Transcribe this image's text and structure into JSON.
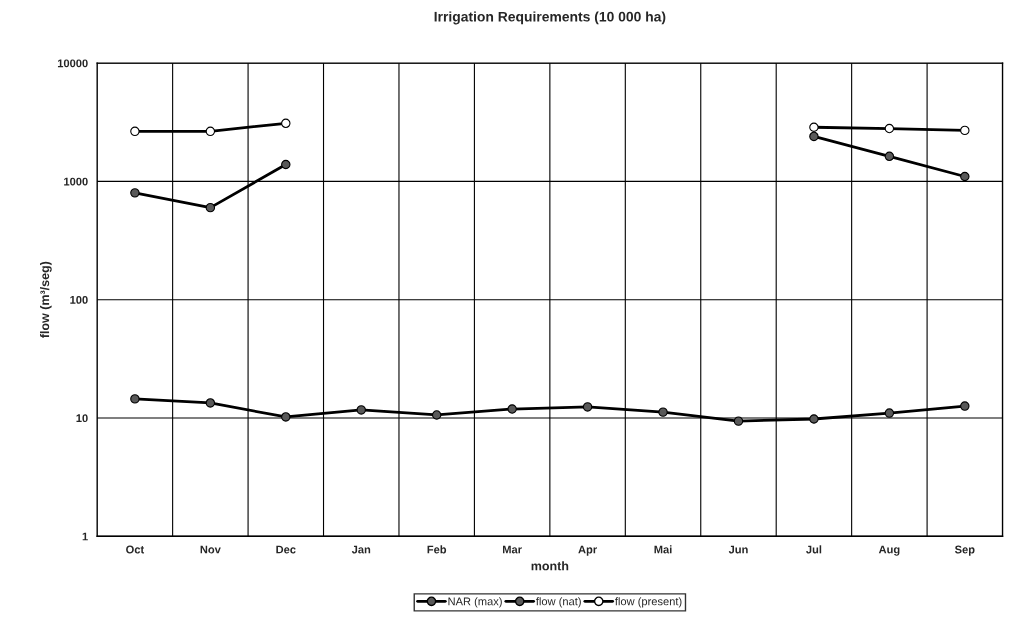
{
  "chart_data": {
    "type": "line",
    "title": "Irrigation Requirements (10 000 ha)",
    "xlabel": "month",
    "ylabel": "flow (m³/seg)",
    "categories": [
      "Oct",
      "Nov",
      "Dec",
      "Jan",
      "Feb",
      "Mar",
      "Apr",
      "Mai",
      "Jun",
      "Jul",
      "Aug",
      "Sep"
    ],
    "series": [
      {
        "name": "NAR (max)",
        "color": "#595959",
        "values": [
          14.5,
          13.4,
          10.2,
          11.7,
          10.6,
          11.9,
          12.4,
          11.2,
          9.4,
          9.8,
          11.0,
          12.6
        ]
      },
      {
        "name": "flow (nat)",
        "color": "#595959",
        "values": [
          800,
          600,
          1390,
          null,
          null,
          null,
          null,
          null,
          null,
          2400,
          1630,
          1100
        ]
      },
      {
        "name": "flow (present)",
        "color": "#ffffff",
        "values": [
          2650,
          2650,
          3100,
          null,
          null,
          null,
          null,
          null,
          null,
          2870,
          2800,
          2700
        ]
      }
    ],
    "log": "y",
    "ylim": [
      1,
      10000
    ],
    "yticks": [
      1,
      10,
      100,
      1000,
      10000
    ],
    "grid": true,
    "legend": "bottom",
    "marker": "circle",
    "line_style": "solid"
  }
}
